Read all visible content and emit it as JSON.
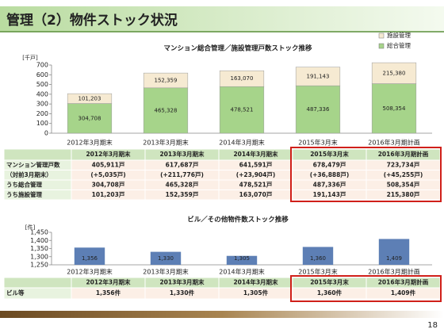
{
  "header": {
    "title": "管理（2）物件ストック状況"
  },
  "page_number": "18",
  "chart_data": [
    {
      "type": "bar",
      "stacked": true,
      "title": "マンション総合管理／施設管理戸数ストック推移",
      "unit_label": "[千戸]",
      "categories": [
        "2012年3月期末",
        "2013年3月期末",
        "2014年3月期末",
        "2015年3月末",
        "2016年3月期計画"
      ],
      "series": [
        {
          "name": "総合管理",
          "color": "#a6d48a",
          "values": [
            304.708,
            465.328,
            478.521,
            487.336,
            508.354
          ],
          "value_labels": [
            "304,708",
            "465,328",
            "478,521",
            "487,336",
            "508,354"
          ]
        },
        {
          "name": "施設管理",
          "color": "#f6ead2",
          "values": [
            101.203,
            152.359,
            163.07,
            191.143,
            215.38
          ],
          "value_labels": [
            "101,203",
            "152,359",
            "163,070",
            "191,143",
            "215,380"
          ]
        }
      ],
      "ylim": [
        0,
        700
      ],
      "yticks": [
        0,
        100,
        200,
        300,
        400,
        500,
        600,
        700
      ],
      "legend": "top-right"
    },
    {
      "type": "bar",
      "title": "ビル／その他物件数ストック推移",
      "unit_label": "[件]",
      "categories": [
        "2012年3月期末",
        "2013年3月期末",
        "2014年3月期末",
        "2015年3月末",
        "2016年3月期計画"
      ],
      "values": [
        1356,
        1330,
        1305,
        1360,
        1409
      ],
      "value_labels": [
        "1,356",
        "1,330",
        "1,305",
        "1,360",
        "1,409"
      ],
      "color": "#5d7fb5",
      "ylim": [
        1250,
        1450
      ],
      "yticks": [
        {
          "value": 1250,
          "label": "1,250"
        },
        {
          "value": 1300,
          "label": "1,300"
        },
        {
          "value": 1350,
          "label": "1,350"
        },
        {
          "value": 1400,
          "label": "1,400"
        },
        {
          "value": 1450,
          "label": "1,450"
        }
      ]
    }
  ],
  "tables": [
    {
      "columns": [
        "2012年3月期末",
        "2013年3月期末",
        "2014年3月期末",
        "2015年3月末",
        "2016年3月期計画"
      ],
      "rows": [
        {
          "label": "マンション管理戸数",
          "cells": [
            "405,911戸",
            "617,687戸",
            "641,591戸",
            "678,479戸",
            "723,734戸"
          ]
        },
        {
          "label": "（対前3月期末）",
          "cells": [
            "(+5,035戸)",
            "(+211,776戸)",
            "(+23,904戸)",
            "(+36,888戸)",
            "(+45,255戸)"
          ]
        },
        {
          "label": "うち総合管理",
          "cells": [
            "304,708戸",
            "465,328戸",
            "478,521戸",
            "487,336戸",
            "508,354戸"
          ]
        },
        {
          "label": "うち施設管理",
          "cells": [
            "101,203戸",
            "152,359戸",
            "163,070戸",
            "191,143戸",
            "215,380戸"
          ]
        }
      ]
    },
    {
      "columns": [
        "2012年3月期末",
        "2013年3月期末",
        "2014年3月期末",
        "2015年3月末",
        "2016年3月期計画"
      ],
      "rows": [
        {
          "label": "ビル等",
          "cells": [
            "1,356件",
            "1,330件",
            "1,305件",
            "1,360件",
            "1,409件"
          ]
        }
      ]
    }
  ]
}
